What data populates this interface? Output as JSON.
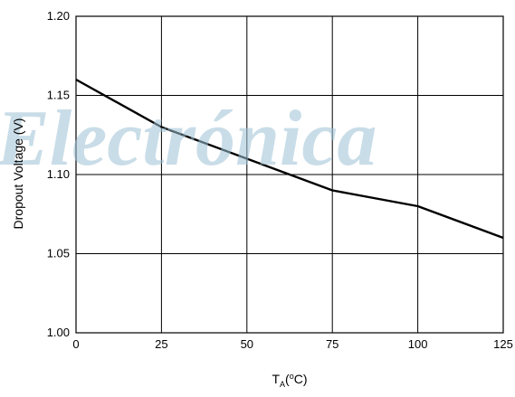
{
  "watermark": "Electrónica",
  "chart_data": {
    "type": "line",
    "xlabel": {
      "base": "T",
      "sub": "A",
      "rest_open": "(",
      "sup": "o",
      "rest_close": "C)"
    },
    "ylabel": "Dropout Voltage (V)",
    "xlim": [
      0,
      125
    ],
    "ylim": [
      1.0,
      1.2
    ],
    "x_ticks": [
      "0",
      "25",
      "50",
      "75",
      "100",
      "125"
    ],
    "y_ticks": [
      "1.00",
      "1.05",
      "1.10",
      "1.15",
      "1.20"
    ],
    "grid": true,
    "series": [
      {
        "x": [
          0,
          25,
          50,
          75,
          100,
          125
        ],
        "values": [
          1.16,
          1.13,
          1.11,
          1.09,
          1.08,
          1.06
        ]
      }
    ],
    "line_color": "#000000"
  }
}
